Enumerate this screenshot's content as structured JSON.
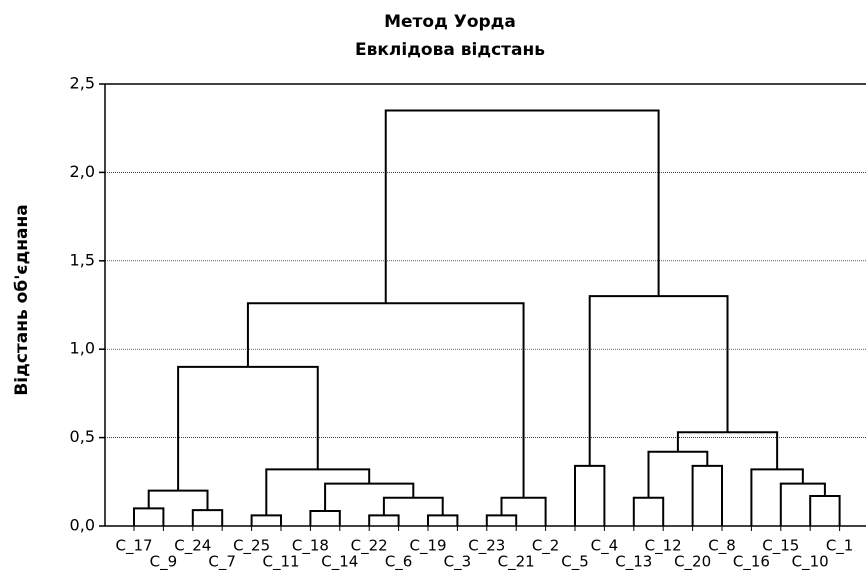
{
  "chart_data": {
    "type": "dendrogram",
    "title": "Метод Уорда",
    "subtitle": "Евклідова відстань",
    "y_label": "Відстань об'єднана",
    "ylim": [
      0,
      2.5
    ],
    "yticks": [
      {
        "value": 0,
        "label": "0,0"
      },
      {
        "value": 0.5,
        "label": "0,5"
      },
      {
        "value": 1,
        "label": "1,0"
      },
      {
        "value": 1.5,
        "label": "1,5"
      },
      {
        "value": 2,
        "label": "2,0"
      },
      {
        "value": 2.5,
        "label": "2,5"
      }
    ],
    "grid": true,
    "color": "#000000",
    "tree": {
      "height": 2.35,
      "children": [
        {
          "height": 1.26,
          "children": [
            {
              "height": 0.9,
              "children": [
                {
                  "height": 0.2,
                  "children": [
                    {
                      "height": 0.1,
                      "children": [
                        "C_17",
                        "C_9"
                      ]
                    },
                    {
                      "height": 0.09,
                      "children": [
                        "C_24",
                        "C_7"
                      ]
                    }
                  ]
                },
                {
                  "height": 0.32,
                  "children": [
                    {
                      "height": 0.06,
                      "children": [
                        "C_25",
                        "C_11"
                      ]
                    },
                    {
                      "height": 0.24,
                      "children": [
                        {
                          "height": 0.085,
                          "children": [
                            "C_18",
                            "C_14"
                          ]
                        },
                        {
                          "height": 0.16,
                          "children": [
                            {
                              "height": 0.06,
                              "children": [
                                "C_22",
                                "C_6"
                              ]
                            },
                            {
                              "height": 0.06,
                              "children": [
                                "C_19",
                                "C_3"
                              ]
                            }
                          ]
                        }
                      ]
                    }
                  ]
                }
              ]
            },
            {
              "height": 0.16,
              "children": [
                {
                  "height": 0.06,
                  "children": [
                    "C_23",
                    "C_21"
                  ]
                },
                "C_2"
              ]
            }
          ]
        },
        {
          "height": 1.3,
          "children": [
            {
              "height": 0.34,
              "children": [
                "C_5",
                "C_4"
              ]
            },
            {
              "height": 0.53,
              "children": [
                {
                  "height": 0.42,
                  "children": [
                    {
                      "height": 0.16,
                      "children": [
                        "C_13",
                        "C_12"
                      ]
                    },
                    {
                      "height": 0.34,
                      "children": [
                        "C_20",
                        "C_8"
                      ]
                    }
                  ]
                },
                {
                  "height": 0.32,
                  "children": [
                    "C_16",
                    {
                      "height": 0.24,
                      "children": [
                        "C_15",
                        {
                          "height": 0.17,
                          "children": [
                            "C_10",
                            "C_1"
                          ]
                        }
                      ]
                    }
                  ]
                }
              ]
            }
          ]
        }
      ]
    }
  }
}
